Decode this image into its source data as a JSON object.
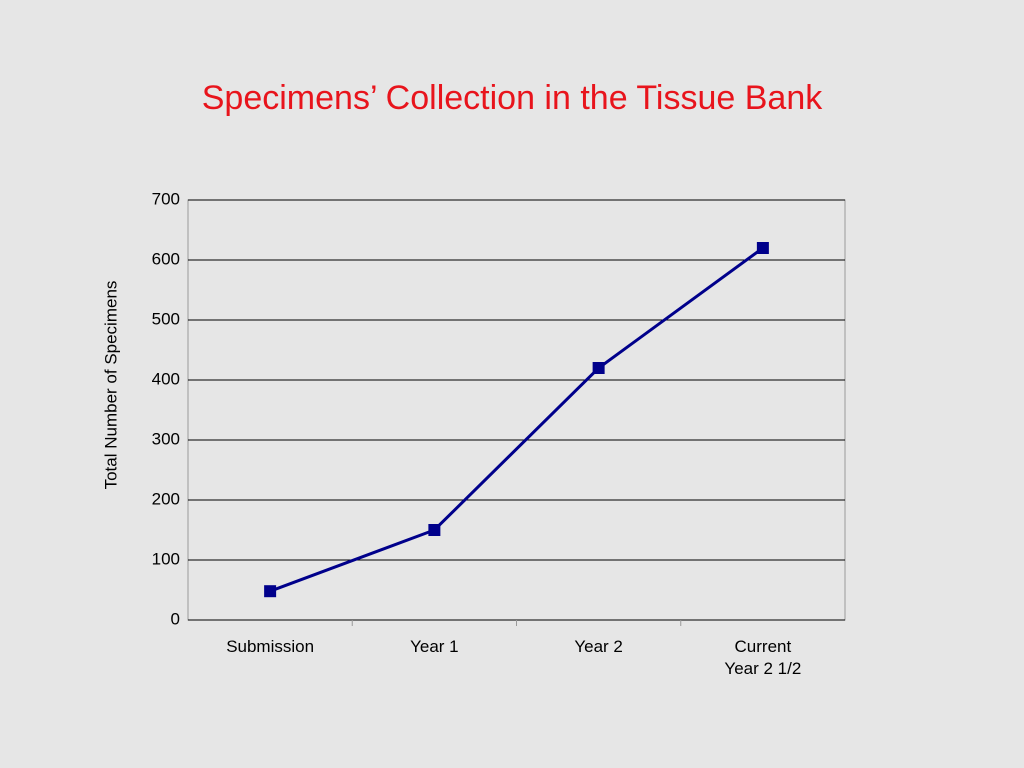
{
  "chart_data": {
    "type": "line",
    "title": "Specimens’ Collection in the Tissue Bank",
    "y_label": "Total Number of Specimens",
    "categories": [
      "Submission",
      "Year 1",
      "Year 2",
      "Current\nYear 2 1/2"
    ],
    "series": [
      {
        "name": "Total Number of Specimens",
        "color": "#00008b",
        "values": [
          48,
          150,
          420,
          620
        ]
      }
    ],
    "ylim": [
      0,
      700
    ],
    "yticks": [
      0,
      100,
      200,
      300,
      400,
      500,
      600,
      700
    ],
    "grid": true
  }
}
